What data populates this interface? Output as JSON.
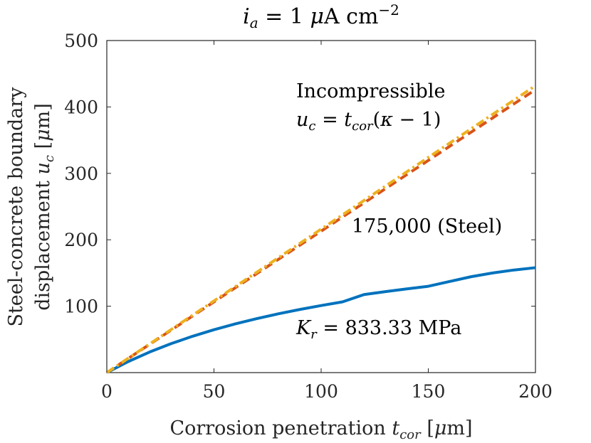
{
  "chart_data": {
    "type": "line",
    "title": "i_a = 1 μA cm⁻²",
    "xlabel": "Corrosion penetration t_cor [μm]",
    "ylabel_line1": "Steel-concrete boundary",
    "ylabel_line2": "displacement u_c [μm]",
    "xlim": [
      0,
      200
    ],
    "ylim": [
      0,
      500
    ],
    "xticks": [
      0,
      50,
      100,
      150,
      200
    ],
    "yticks": [
      100,
      200,
      300,
      400,
      500
    ],
    "grid": false,
    "x": [
      0,
      10,
      20,
      30,
      40,
      50,
      60,
      70,
      80,
      90,
      100,
      110,
      120,
      130,
      140,
      150,
      160,
      170,
      180,
      190,
      200
    ],
    "series": [
      {
        "name": "Incompressible u_c = t_cor(κ − 1)",
        "color": "#EDB120",
        "style": "dashdot",
        "values": [
          0,
          21.6,
          43.2,
          64.8,
          86.4,
          108,
          129.6,
          151.2,
          172.8,
          194.4,
          216,
          237.6,
          259.2,
          280.8,
          302.4,
          324,
          345.6,
          367.2,
          388.8,
          410.4,
          432
        ]
      },
      {
        "name": "175,000 (Steel)",
        "color": "#D95319",
        "style": "dashed",
        "values": [
          0,
          21.3,
          42.6,
          63.9,
          85.2,
          106.5,
          127.8,
          149.1,
          170.4,
          191.7,
          213,
          234.3,
          255.6,
          276.9,
          298.2,
          319.5,
          340.8,
          362.1,
          383.4,
          404.7,
          426
        ]
      },
      {
        "name": "K_r = 833.33 MPa",
        "color": "#0072BD",
        "style": "solid",
        "values": [
          0,
          16.6,
          31,
          43.6,
          54.7,
          64.6,
          73.4,
          81.3,
          88.5,
          95,
          101,
          106.5,
          117.5,
          121.9,
          126.1,
          130,
          137.2,
          144.4,
          150,
          154.5,
          158
        ]
      }
    ],
    "annotations": {
      "incompressible_line1": "Incompressible",
      "incompressible_line2": "u_c = t_cor(κ − 1)",
      "steel": "175,000 (Steel)",
      "kr": "K_r = 833.33 MPa"
    }
  }
}
